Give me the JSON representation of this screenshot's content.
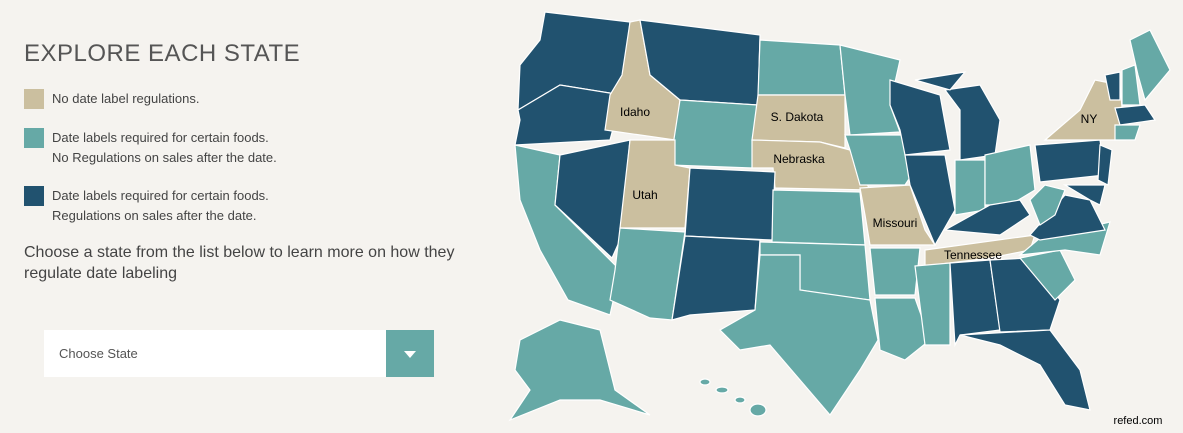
{
  "header": {
    "title": "EXPLORE EACH STATE"
  },
  "legend": [
    {
      "lines": [
        "No date label regulations."
      ]
    },
    {
      "lines": [
        "Date labels required for certain foods.",
        "No Regulations on sales after the date."
      ]
    },
    {
      "lines": [
        "Date labels required for certain foods.",
        "Regulations on sales after the date."
      ]
    }
  ],
  "prompt": [
    "Choose a state from the list below to learn more on how they",
    "regulate date labeling"
  ],
  "dropdown": {
    "placeholder": "Choose State"
  },
  "map": {
    "labels": [
      "Idaho",
      "Utah",
      "S. Dakota",
      "Nebraska",
      "Missouri",
      "Tennessee",
      "NY"
    ],
    "credit": "refed.com"
  }
}
